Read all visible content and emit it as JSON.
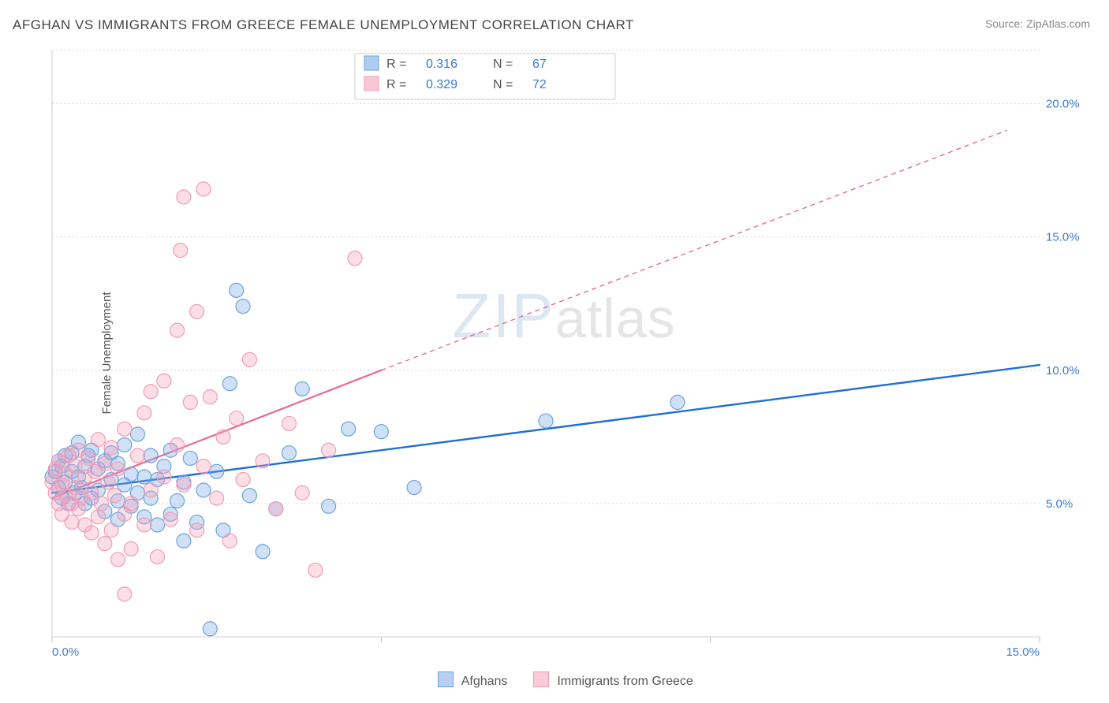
{
  "title": "AFGHAN VS IMMIGRANTS FROM GREECE FEMALE UNEMPLOYMENT CORRELATION CHART",
  "source": "Source: ZipAtlas.com",
  "ylabel": "Female Unemployment",
  "watermark_a": "ZIP",
  "watermark_b": "atlas",
  "chart": {
    "type": "scatter",
    "x_min": 0,
    "x_max": 15,
    "y_min": 0,
    "y_max": 22,
    "x_ticks": [
      0,
      5,
      10,
      15
    ],
    "x_tick_labels": [
      "0.0%",
      "",
      "",
      "15.0%"
    ],
    "y_ticks": [
      5,
      10,
      15,
      20
    ],
    "y_tick_labels": [
      "5.0%",
      "10.0%",
      "15.0%",
      "20.0%"
    ],
    "grid_y": [
      5,
      10,
      15,
      20,
      22
    ],
    "background": "#ffffff",
    "grid_color": "#d8d8d8",
    "axis_color": "#cfcfcf",
    "marker_radius": 9,
    "marker_stroke_width": 1.2,
    "series": [
      {
        "name": "Afghans",
        "fill": "rgba(120,170,230,0.35)",
        "stroke": "#6aa3e0",
        "line_color": "#1f6fd4",
        "line_width": 2.4,
        "R": "0.316",
        "N": "67",
        "trend": {
          "x1": 0,
          "y1": 5.4,
          "x2": 15,
          "y2": 10.2,
          "dash": null,
          "ext_x2": null,
          "ext_y2": null
        },
        "points": [
          [
            0.0,
            6.0
          ],
          [
            0.05,
            6.2
          ],
          [
            0.1,
            5.6
          ],
          [
            0.1,
            6.6
          ],
          [
            0.15,
            5.2
          ],
          [
            0.15,
            6.4
          ],
          [
            0.2,
            5.8
          ],
          [
            0.2,
            6.8
          ],
          [
            0.25,
            5.0
          ],
          [
            0.3,
            6.2
          ],
          [
            0.3,
            6.9
          ],
          [
            0.35,
            5.4
          ],
          [
            0.4,
            6.0
          ],
          [
            0.4,
            7.3
          ],
          [
            0.45,
            5.6
          ],
          [
            0.5,
            6.4
          ],
          [
            0.5,
            5.0
          ],
          [
            0.55,
            6.8
          ],
          [
            0.6,
            5.2
          ],
          [
            0.6,
            7.0
          ],
          [
            0.7,
            5.5
          ],
          [
            0.7,
            6.3
          ],
          [
            0.8,
            6.6
          ],
          [
            0.8,
            4.7
          ],
          [
            0.9,
            5.9
          ],
          [
            0.9,
            6.9
          ],
          [
            1.0,
            5.1
          ],
          [
            1.0,
            6.5
          ],
          [
            1.0,
            4.4
          ],
          [
            1.1,
            5.7
          ],
          [
            1.1,
            7.2
          ],
          [
            1.2,
            4.9
          ],
          [
            1.2,
            6.1
          ],
          [
            1.3,
            5.4
          ],
          [
            1.3,
            7.6
          ],
          [
            1.4,
            4.5
          ],
          [
            1.4,
            6.0
          ],
          [
            1.5,
            5.2
          ],
          [
            1.5,
            6.8
          ],
          [
            1.6,
            4.2
          ],
          [
            1.6,
            5.9
          ],
          [
            1.7,
            6.4
          ],
          [
            1.8,
            4.6
          ],
          [
            1.8,
            7.0
          ],
          [
            1.9,
            5.1
          ],
          [
            2.0,
            5.8
          ],
          [
            2.0,
            3.6
          ],
          [
            2.1,
            6.7
          ],
          [
            2.2,
            4.3
          ],
          [
            2.3,
            5.5
          ],
          [
            2.4,
            0.3
          ],
          [
            2.5,
            6.2
          ],
          [
            2.6,
            4.0
          ],
          [
            2.7,
            9.5
          ],
          [
            2.8,
            13.0
          ],
          [
            2.9,
            12.4
          ],
          [
            3.0,
            5.3
          ],
          [
            3.2,
            3.2
          ],
          [
            3.4,
            4.8
          ],
          [
            3.6,
            6.9
          ],
          [
            3.8,
            9.3
          ],
          [
            4.2,
            4.9
          ],
          [
            4.5,
            7.8
          ],
          [
            5.0,
            7.7
          ],
          [
            5.5,
            5.6
          ],
          [
            7.5,
            8.1
          ],
          [
            9.5,
            8.8
          ]
        ]
      },
      {
        "name": "Immigrants from Greece",
        "fill": "rgba(245,160,185,0.35)",
        "stroke": "#ef9db5",
        "line_color": "#e86a8f",
        "line_width": 2.2,
        "R": "0.329",
        "N": "72",
        "trend": {
          "x1": 0,
          "y1": 5.2,
          "x2": 5.0,
          "y2": 10.0,
          "dash": "6 5",
          "ext_x2": 14.5,
          "ext_y2": 19.0
        },
        "points": [
          [
            0.0,
            5.8
          ],
          [
            0.05,
            5.4
          ],
          [
            0.05,
            6.3
          ],
          [
            0.1,
            5.0
          ],
          [
            0.1,
            6.6
          ],
          [
            0.15,
            5.7
          ],
          [
            0.15,
            4.6
          ],
          [
            0.2,
            6.1
          ],
          [
            0.2,
            5.3
          ],
          [
            0.25,
            6.8
          ],
          [
            0.3,
            5.0
          ],
          [
            0.3,
            4.3
          ],
          [
            0.35,
            6.4
          ],
          [
            0.35,
            5.6
          ],
          [
            0.4,
            4.8
          ],
          [
            0.4,
            7.0
          ],
          [
            0.45,
            5.2
          ],
          [
            0.5,
            6.0
          ],
          [
            0.5,
            4.2
          ],
          [
            0.55,
            6.7
          ],
          [
            0.6,
            5.4
          ],
          [
            0.6,
            3.9
          ],
          [
            0.65,
            6.2
          ],
          [
            0.7,
            4.5
          ],
          [
            0.7,
            7.4
          ],
          [
            0.75,
            5.0
          ],
          [
            0.8,
            6.5
          ],
          [
            0.8,
            3.5
          ],
          [
            0.85,
            5.8
          ],
          [
            0.9,
            4.0
          ],
          [
            0.9,
            7.1
          ],
          [
            0.95,
            5.3
          ],
          [
            1.0,
            6.3
          ],
          [
            1.0,
            2.9
          ],
          [
            1.1,
            4.6
          ],
          [
            1.1,
            7.8
          ],
          [
            1.2,
            5.0
          ],
          [
            1.2,
            3.3
          ],
          [
            1.3,
            6.8
          ],
          [
            1.4,
            4.2
          ],
          [
            1.4,
            8.4
          ],
          [
            1.5,
            5.5
          ],
          [
            1.5,
            9.2
          ],
          [
            1.6,
            3.0
          ],
          [
            1.7,
            6.0
          ],
          [
            1.7,
            9.6
          ],
          [
            1.8,
            4.4
          ],
          [
            1.9,
            7.2
          ],
          [
            1.9,
            11.5
          ],
          [
            1.95,
            14.5
          ],
          [
            2.0,
            5.7
          ],
          [
            2.0,
            16.5
          ],
          [
            2.1,
            8.8
          ],
          [
            2.2,
            4.0
          ],
          [
            2.2,
            12.2
          ],
          [
            2.3,
            6.4
          ],
          [
            2.3,
            16.8
          ],
          [
            2.4,
            9.0
          ],
          [
            2.5,
            5.2
          ],
          [
            2.6,
            7.5
          ],
          [
            2.7,
            3.6
          ],
          [
            2.8,
            8.2
          ],
          [
            2.9,
            5.9
          ],
          [
            3.0,
            10.4
          ],
          [
            3.2,
            6.6
          ],
          [
            3.4,
            4.8
          ],
          [
            3.6,
            8.0
          ],
          [
            3.8,
            5.4
          ],
          [
            4.0,
            2.5
          ],
          [
            4.2,
            7.0
          ],
          [
            4.6,
            14.2
          ],
          [
            1.1,
            1.6
          ]
        ]
      }
    ],
    "legend_series": [
      {
        "label": "Afghans",
        "fill": "rgba(120,170,230,0.55)",
        "stroke": "#6aa3e0"
      },
      {
        "label": "Immigrants from Greece",
        "fill": "rgba(245,160,185,0.55)",
        "stroke": "#ef9db5"
      }
    ]
  }
}
